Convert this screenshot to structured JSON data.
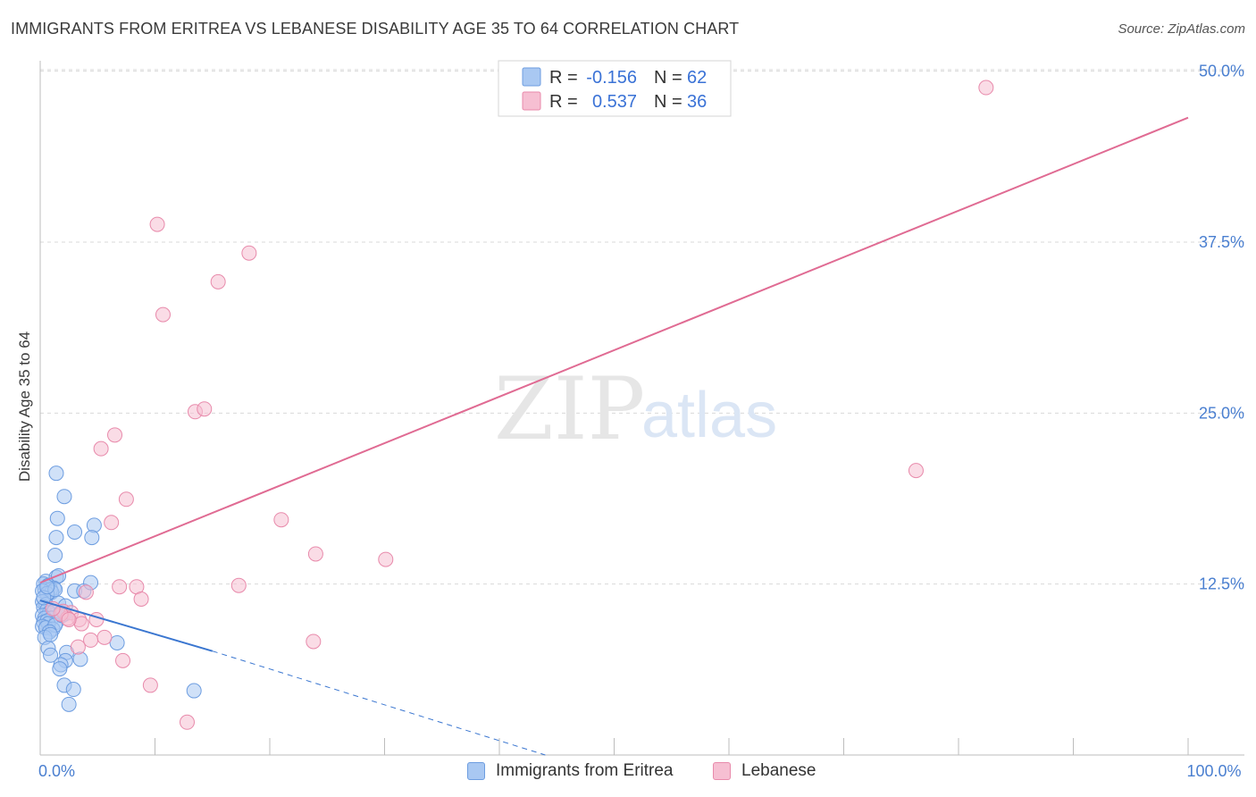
{
  "title": "IMMIGRANTS FROM ERITREA VS LEBANESE DISABILITY AGE 35 TO 64 CORRELATION CHART",
  "source": "Source: ZipAtlas.com",
  "watermark": {
    "zip": "ZIP",
    "atlas": "atlas"
  },
  "legend_top": {
    "rows": [
      {
        "r_label": "R =",
        "r_value": "-0.156",
        "n_label": "N =",
        "n_value": "62"
      },
      {
        "r_label": "R =",
        "r_value": "0.537",
        "n_label": "N =",
        "n_value": "36"
      }
    ]
  },
  "legend_bottom": [
    {
      "label": "Immigrants from Eritrea"
    },
    {
      "label": "Lebanese"
    }
  ],
  "colors": {
    "blue_fill": "#a9c8f2",
    "blue_stroke": "#6d9de0",
    "blue_line": "#3a76d0",
    "pink_fill": "#f6bfd2",
    "pink_stroke": "#e88aab",
    "pink_line": "#e06b93",
    "tick": "#4a7fd0"
  },
  "chart_data": {
    "type": "scatter",
    "title": "IMMIGRANTS FROM ERITREA VS LEBANESE DISABILITY AGE 35 TO 64 CORRELATION CHART",
    "xlabel": "",
    "ylabel": "Disability Age 35 to 64",
    "xlim": [
      0,
      100
    ],
    "ylim": [
      0,
      50.5
    ],
    "x_tick_labels": [
      {
        "value": 0,
        "label": "0.0%"
      },
      {
        "value": 100,
        "label": "100.0%"
      }
    ],
    "y_tick_labels": [
      {
        "value": 12.5,
        "label": "12.5%"
      },
      {
        "value": 25,
        "label": "25.0%"
      },
      {
        "value": 37.5,
        "label": "37.5%"
      },
      {
        "value": 50,
        "label": "50.0%"
      }
    ],
    "series": [
      {
        "name": "Immigrants from Eritrea",
        "r": -0.156,
        "n": 62,
        "points": [
          [
            1.4,
            20.6
          ],
          [
            2.1,
            18.9
          ],
          [
            1.5,
            17.3
          ],
          [
            4.7,
            16.8
          ],
          [
            3.0,
            16.3
          ],
          [
            1.4,
            15.9
          ],
          [
            4.5,
            15.9
          ],
          [
            1.3,
            14.6
          ],
          [
            0.5,
            12.7
          ],
          [
            0.3,
            12.5
          ],
          [
            1.4,
            13.0
          ],
          [
            1.6,
            13.1
          ],
          [
            0.7,
            12.4
          ],
          [
            1.2,
            12.2
          ],
          [
            0.4,
            12.1
          ],
          [
            0.9,
            12.1
          ],
          [
            0.2,
            12.0
          ],
          [
            1.0,
            11.9
          ],
          [
            0.6,
            11.8
          ],
          [
            1.3,
            12.1
          ],
          [
            3.0,
            12.0
          ],
          [
            3.8,
            12.0
          ],
          [
            4.4,
            12.6
          ],
          [
            0.2,
            11.2
          ],
          [
            0.5,
            11.0
          ],
          [
            1.6,
            11.1
          ],
          [
            2.2,
            10.9
          ],
          [
            0.3,
            10.8
          ],
          [
            0.6,
            10.6
          ],
          [
            0.8,
            10.4
          ],
          [
            1.2,
            10.5
          ],
          [
            1.8,
            10.4
          ],
          [
            2.1,
            10.3
          ],
          [
            0.2,
            10.2
          ],
          [
            0.4,
            10.0
          ],
          [
            1.0,
            10.0
          ],
          [
            0.3,
            9.7
          ],
          [
            0.6,
            9.8
          ],
          [
            1.4,
            9.7
          ],
          [
            0.7,
            9.6
          ],
          [
            0.2,
            9.4
          ],
          [
            0.5,
            9.3
          ],
          [
            1.1,
            9.2
          ],
          [
            1.3,
            9.5
          ],
          [
            0.8,
            9.0
          ],
          [
            0.4,
            8.6
          ],
          [
            0.9,
            8.8
          ],
          [
            0.7,
            7.8
          ],
          [
            6.7,
            8.2
          ],
          [
            2.3,
            7.5
          ],
          [
            0.9,
            7.3
          ],
          [
            3.5,
            7.0
          ],
          [
            2.2,
            6.9
          ],
          [
            1.8,
            6.6
          ],
          [
            1.7,
            6.3
          ],
          [
            2.1,
            5.1
          ],
          [
            2.9,
            4.8
          ],
          [
            13.4,
            4.7
          ],
          [
            2.5,
            3.7
          ],
          [
            0.3,
            11.5
          ],
          [
            0.6,
            12.3
          ],
          [
            1.9,
            10.2
          ]
        ],
        "trend": {
          "x_from": 0,
          "y_from": 11.3,
          "x_to": 15,
          "y_to": 7.6,
          "dashed_to_x": 44,
          "dashed_to_y": 0
        }
      },
      {
        "name": "Lebanese",
        "r": 0.537,
        "n": 36,
        "points": [
          [
            82.4,
            48.8
          ],
          [
            10.2,
            38.8
          ],
          [
            18.2,
            36.7
          ],
          [
            15.5,
            34.6
          ],
          [
            10.7,
            32.2
          ],
          [
            13.5,
            25.1
          ],
          [
            14.3,
            25.3
          ],
          [
            6.5,
            23.4
          ],
          [
            5.3,
            22.4
          ],
          [
            76.3,
            20.8
          ],
          [
            7.5,
            18.7
          ],
          [
            21.0,
            17.2
          ],
          [
            6.2,
            17.0
          ],
          [
            24.0,
            14.7
          ],
          [
            30.1,
            14.3
          ],
          [
            6.9,
            12.3
          ],
          [
            8.4,
            12.3
          ],
          [
            17.3,
            12.4
          ],
          [
            8.8,
            11.4
          ],
          [
            4.0,
            11.9
          ],
          [
            2.0,
            10.5
          ],
          [
            2.7,
            10.4
          ],
          [
            3.4,
            9.9
          ],
          [
            2.4,
            10.0
          ],
          [
            1.8,
            10.3
          ],
          [
            4.9,
            9.9
          ],
          [
            3.6,
            9.6
          ],
          [
            2.5,
            9.9
          ],
          [
            5.6,
            8.6
          ],
          [
            23.8,
            8.3
          ],
          [
            4.4,
            8.4
          ],
          [
            3.3,
            7.9
          ],
          [
            7.2,
            6.9
          ],
          [
            9.6,
            5.1
          ],
          [
            12.8,
            2.4
          ],
          [
            1.1,
            10.7
          ]
        ],
        "trend": {
          "x_from": 0,
          "y_from": 12.6,
          "x_to": 100,
          "y_to": 46.6
        }
      }
    ]
  }
}
